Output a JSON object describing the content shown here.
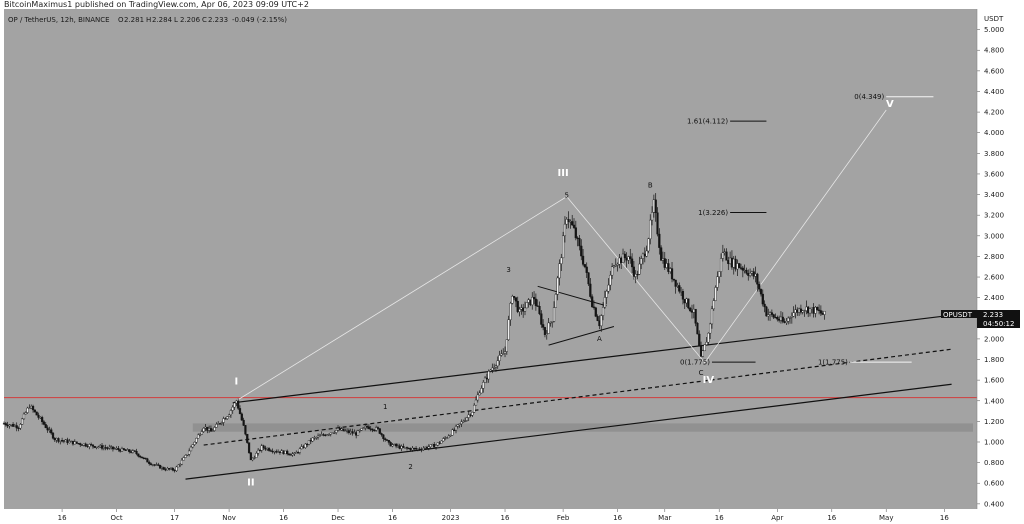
{
  "credit": "BitcoinMaximus1 published on TradingView.com, Apr 06, 2023 09:09 UTC+2",
  "header": {
    "symbol": "OP / TetherUS, 12h, BINANCE",
    "o_label": "O",
    "o_value": "2.281",
    "h_label": "H",
    "h_value": "2.284",
    "l_label": "L",
    "l_value": "2.206",
    "c_label": "C",
    "c_value": "2.233",
    "change": "-0.049 (-2.15%)"
  },
  "price_tag": {
    "ticker": "OPUSDT",
    "price": "2.233",
    "countdown": "04:50:12"
  },
  "colors": {
    "plot_bg": "#a3a3a3",
    "candle": "#141414",
    "red_line": "#d23c3c",
    "price_tag_bg": "#111111",
    "white_target": "#f5f5f5"
  },
  "chart_data": {
    "type": "candlestick",
    "currency_label": "USDT",
    "y_ticks": [
      "5.000",
      "4.800",
      "4.600",
      "4.400",
      "4.200",
      "4.000",
      "3.800",
      "3.600",
      "3.400",
      "3.200",
      "3.000",
      "2.800",
      "2.600",
      "2.400",
      "2.200",
      "2.000",
      "1.800",
      "1.600",
      "1.400",
      "1.200",
      "1.000",
      "0.800",
      "0.600",
      "0.400"
    ],
    "ylim": [
      0.35,
      5.2
    ],
    "x_ticks": [
      "16",
      "Oct",
      "17",
      "Nov",
      "16",
      "Dec",
      "16",
      "2023",
      "16",
      "Feb",
      "16",
      "Mar",
      "16",
      "Apr",
      "16",
      "May",
      "16"
    ],
    "x_tick_days": [
      16,
      31,
      47,
      62,
      77,
      92,
      107,
      123,
      138,
      154,
      169,
      182,
      197,
      213,
      228,
      243,
      259
    ],
    "xlim": [
      0,
      268
    ],
    "x_start": "2022-09-01",
    "price_path": [
      [
        0,
        1.18
      ],
      [
        4,
        1.15
      ],
      [
        7,
        1.35
      ],
      [
        10,
        1.22
      ],
      [
        14,
        1.03
      ],
      [
        18,
        1.0
      ],
      [
        25,
        0.96
      ],
      [
        31,
        0.93
      ],
      [
        36,
        0.9
      ],
      [
        40,
        0.8
      ],
      [
        44,
        0.74
      ],
      [
        47,
        0.73
      ],
      [
        50,
        0.86
      ],
      [
        55,
        1.15
      ],
      [
        57,
        1.1
      ],
      [
        62,
        1.28
      ],
      [
        64,
        1.4
      ],
      [
        66,
        1.15
      ],
      [
        68,
        0.82
      ],
      [
        71,
        0.95
      ],
      [
        74,
        0.92
      ],
      [
        80,
        0.88
      ],
      [
        85,
        1.03
      ],
      [
        92,
        1.12
      ],
      [
        97,
        1.08
      ],
      [
        100,
        1.15
      ],
      [
        103,
        1.12
      ],
      [
        106,
        0.98
      ],
      [
        110,
        0.94
      ],
      [
        114,
        0.93
      ],
      [
        119,
        0.97
      ],
      [
        122,
        1.05
      ],
      [
        125,
        1.15
      ],
      [
        129,
        1.3
      ],
      [
        131,
        1.5
      ],
      [
        134,
        1.7
      ],
      [
        138,
        1.88
      ],
      [
        140,
        2.45
      ],
      [
        142,
        2.25
      ],
      [
        146,
        2.4
      ],
      [
        149,
        2.05
      ],
      [
        151,
        2.2
      ],
      [
        153,
        2.7
      ],
      [
        155,
        3.2
      ],
      [
        157,
        3.05
      ],
      [
        160,
        2.7
      ],
      [
        162,
        2.35
      ],
      [
        164,
        2.15
      ],
      [
        168,
        2.75
      ],
      [
        172,
        2.8
      ],
      [
        174,
        2.6
      ],
      [
        177,
        2.9
      ],
      [
        179,
        3.3
      ],
      [
        181,
        2.8
      ],
      [
        185,
        2.55
      ],
      [
        188,
        2.35
      ],
      [
        190,
        2.25
      ],
      [
        192,
        1.8
      ],
      [
        194,
        2.05
      ],
      [
        196,
        2.5
      ],
      [
        198,
        2.85
      ],
      [
        200,
        2.75
      ],
      [
        203,
        2.7
      ],
      [
        207,
        2.6
      ],
      [
        210,
        2.25
      ],
      [
        213,
        2.2
      ],
      [
        215,
        2.15
      ],
      [
        217,
        2.25
      ],
      [
        220,
        2.3
      ],
      [
        224,
        2.27
      ],
      [
        226,
        2.23
      ]
    ],
    "horizontal_red_line": 1.43,
    "support_zone": [
      1.1,
      1.18
    ],
    "channel_lines": [
      {
        "style": "solid",
        "from": [
          63,
          1.38
        ],
        "to": [
          261,
          2.23
        ]
      },
      {
        "style": "dashed",
        "from": [
          55,
          0.97
        ],
        "to": [
          261,
          1.9
        ]
      },
      {
        "style": "solid",
        "from": [
          50,
          0.64
        ],
        "to": [
          261,
          1.56
        ]
      }
    ],
    "wave_path": [
      [
        64,
        1.4
      ],
      [
        155,
        3.38
      ],
      [
        193,
        1.77
      ],
      [
        243,
        4.22
      ]
    ],
    "triangle_lines": [
      {
        "from": [
          147,
          2.51
        ],
        "to": [
          166,
          2.32
        ]
      },
      {
        "from": [
          150,
          1.94
        ],
        "to": [
          168,
          2.12
        ]
      }
    ],
    "fib_levels": [
      {
        "label": "0(4.349)",
        "value": 4.349,
        "x_from": 243,
        "x_to": 256,
        "color": "white"
      },
      {
        "label": "1.61(4.112)",
        "value": 4.112,
        "x_from": 200,
        "x_to": 210,
        "color": "black"
      },
      {
        "label": "1(3.226)",
        "value": 3.226,
        "x_from": 200,
        "x_to": 210,
        "color": "black"
      },
      {
        "label": "0(1.775)",
        "value": 1.775,
        "x_from": 195,
        "x_to": 207,
        "color": "black"
      },
      {
        "label": "1(1.775)",
        "value": 1.775,
        "x_from": 233,
        "x_to": 250,
        "color": "white"
      }
    ],
    "wave_labels": [
      {
        "text": "I",
        "x": 64,
        "y": 1.56,
        "style": "white"
      },
      {
        "text": "II",
        "x": 68,
        "y": 0.58,
        "style": "white"
      },
      {
        "text": "III",
        "x": 154,
        "y": 3.58,
        "style": "white"
      },
      {
        "text": "IV",
        "x": 194,
        "y": 1.57,
        "style": "white"
      },
      {
        "text": "V",
        "x": 244,
        "y": 4.25,
        "style": "white"
      },
      {
        "text": "1",
        "x": 105,
        "y": 1.32,
        "style": "black"
      },
      {
        "text": "2",
        "x": 112,
        "y": 0.74,
        "style": "black"
      },
      {
        "text": "3",
        "x": 139,
        "y": 2.65,
        "style": "black"
      },
      {
        "text": "5",
        "x": 155,
        "y": 3.37,
        "style": "black"
      },
      {
        "text": "A",
        "x": 164,
        "y": 1.98,
        "style": "black"
      },
      {
        "text": "B",
        "x": 178,
        "y": 3.47,
        "style": "black"
      },
      {
        "text": "C",
        "x": 192,
        "y": 1.65,
        "style": "black"
      }
    ]
  }
}
